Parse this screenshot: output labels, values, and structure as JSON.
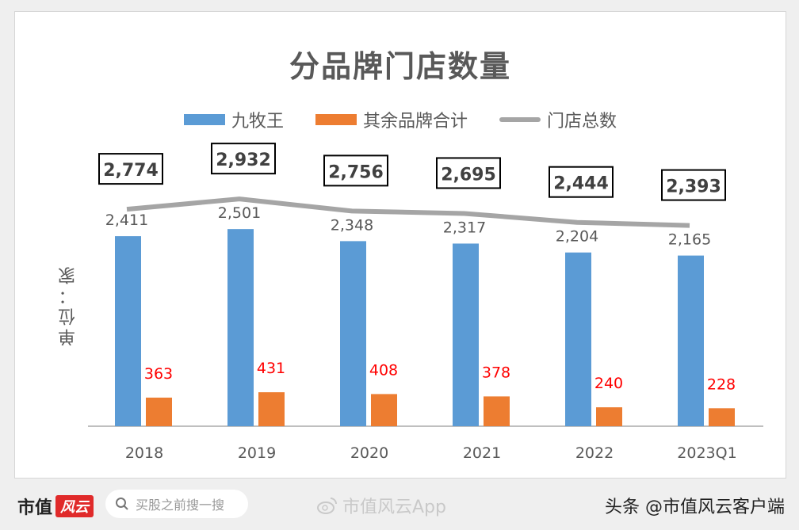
{
  "chart_data": {
    "type": "bar",
    "title": "分品牌门店数量",
    "xlabel": "",
    "ylabel": "单位：家",
    "categories": [
      "2018",
      "2019",
      "2020",
      "2021",
      "2022",
      "2023Q1"
    ],
    "series": [
      {
        "name": "九牧王",
        "type": "bar",
        "color": "#5b9bd5",
        "values": [
          2411,
          2501,
          2348,
          2317,
          2204,
          2165
        ]
      },
      {
        "name": "其余品牌合计",
        "type": "bar",
        "color": "#ed7d31",
        "values": [
          363,
          431,
          408,
          378,
          240,
          228
        ]
      },
      {
        "name": "门店总数",
        "type": "line",
        "color": "#a5a5a5",
        "values": [
          2774,
          2932,
          2756,
          2695,
          2444,
          2393
        ]
      }
    ],
    "data_labels": {
      "jiumuwang": [
        "2,411",
        "2,501",
        "2,348",
        "2,317",
        "2,204",
        "2,165"
      ],
      "others": [
        "363",
        "431",
        "408",
        "378",
        "240",
        "228"
      ],
      "total": [
        "2,774",
        "2,932",
        "2,756",
        "2,695",
        "2,444",
        "2,393"
      ]
    },
    "legend_position": "top",
    "grid": false
  },
  "legend": [
    {
      "label": "九牧王",
      "color": "#5b9bd5"
    },
    {
      "label": "其余品牌合计",
      "color": "#ed7d31"
    },
    {
      "label": "门店总数",
      "color": "#a5a5a5"
    }
  ],
  "footer": {
    "brand_text": "市值",
    "brand_logo": "风云",
    "search_placeholder": "买股之前搜一搜",
    "weibo_text": "市值风云App",
    "toutiao_text": "头条 @市值风云客户端"
  }
}
